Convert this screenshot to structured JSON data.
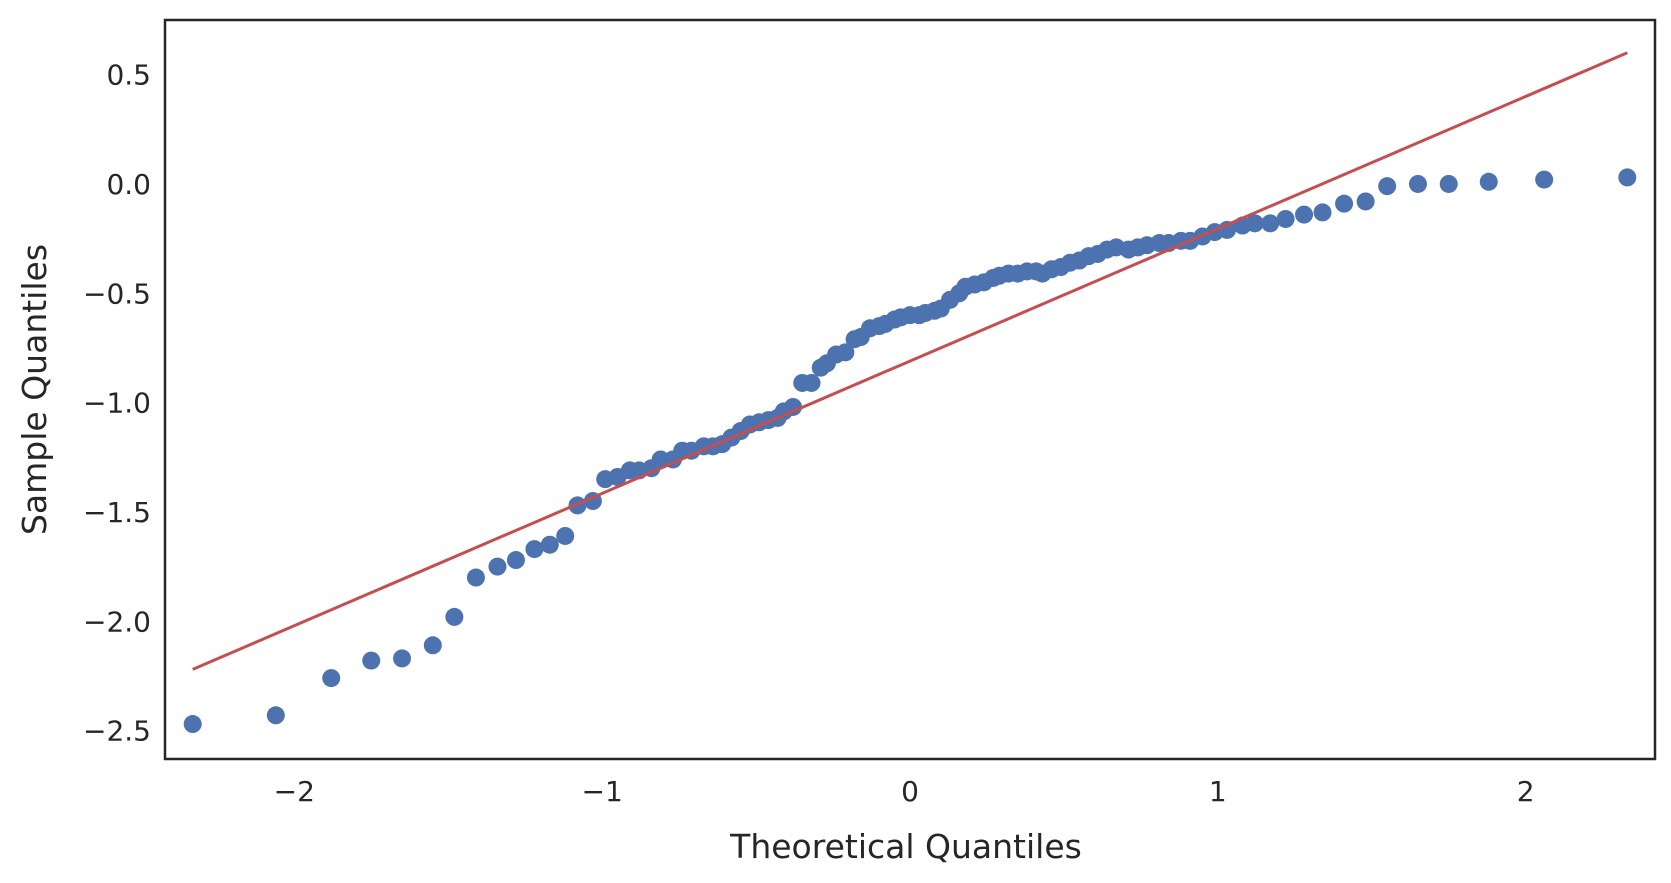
{
  "colors": {
    "points": "#4c72b0",
    "line": "#c44e52",
    "frame": "#262626",
    "text": "#262626"
  },
  "chart_data": {
    "type": "scatter",
    "title": "",
    "xlabel": "Theoretical Quantiles",
    "ylabel": "Sample Quantiles",
    "xlim": [
      -2.42,
      2.42
    ],
    "ylim": [
      -2.63,
      0.75
    ],
    "xticks": [
      {
        "value": -2,
        "label": "−2"
      },
      {
        "value": -1,
        "label": "−1"
      },
      {
        "value": 0,
        "label": "0"
      },
      {
        "value": 1,
        "label": "1"
      },
      {
        "value": 2,
        "label": "2"
      }
    ],
    "yticks": [
      {
        "value": 0.5,
        "label": "0.5"
      },
      {
        "value": 0.0,
        "label": "0.0"
      },
      {
        "value": -0.5,
        "label": "−0.5"
      },
      {
        "value": -1.0,
        "label": "−1.0"
      },
      {
        "value": -1.5,
        "label": "−1.5"
      },
      {
        "value": -2.0,
        "label": "−2.0"
      },
      {
        "value": -2.5,
        "label": "−2.5"
      }
    ],
    "reference_line": {
      "name": "fit",
      "x": [
        -2.33,
        2.33
      ],
      "y": [
        -2.22,
        0.6
      ]
    },
    "series": [
      {
        "name": "sample",
        "x": [
          -2.33,
          -2.06,
          -1.88,
          -1.75,
          -1.65,
          -1.55,
          -1.48,
          -1.41,
          -1.34,
          -1.28,
          -1.22,
          -1.17,
          -1.12,
          -1.08,
          -1.03,
          -0.99,
          -0.95,
          -0.91,
          -0.88,
          -0.84,
          -0.81,
          -0.77,
          -0.74,
          -0.71,
          -0.67,
          -0.64,
          -0.61,
          -0.58,
          -0.55,
          -0.52,
          -0.49,
          -0.46,
          -0.43,
          -0.41,
          -0.38,
          -0.35,
          -0.32,
          -0.29,
          -0.27,
          -0.24,
          -0.21,
          -0.18,
          -0.16,
          -0.13,
          -0.1,
          -0.08,
          -0.05,
          -0.03,
          0.0,
          0.03,
          0.05,
          0.08,
          0.1,
          0.13,
          0.16,
          0.18,
          0.21,
          0.24,
          0.27,
          0.29,
          0.32,
          0.35,
          0.38,
          0.41,
          0.43,
          0.46,
          0.49,
          0.52,
          0.55,
          0.58,
          0.61,
          0.64,
          0.67,
          0.71,
          0.74,
          0.77,
          0.81,
          0.84,
          0.88,
          0.91,
          0.95,
          0.99,
          1.03,
          1.08,
          1.12,
          1.17,
          1.22,
          1.28,
          1.34,
          1.41,
          1.48,
          1.55,
          1.65,
          1.75,
          1.88,
          2.06,
          2.33
        ],
        "y": [
          -2.47,
          -2.43,
          -2.26,
          -2.18,
          -2.17,
          -2.11,
          -1.98,
          -1.8,
          -1.75,
          -1.72,
          -1.67,
          -1.65,
          -1.61,
          -1.47,
          -1.45,
          -1.35,
          -1.34,
          -1.31,
          -1.31,
          -1.3,
          -1.26,
          -1.26,
          -1.22,
          -1.22,
          -1.2,
          -1.2,
          -1.19,
          -1.16,
          -1.13,
          -1.1,
          -1.09,
          -1.08,
          -1.07,
          -1.04,
          -1.02,
          -0.91,
          -0.91,
          -0.84,
          -0.82,
          -0.78,
          -0.77,
          -0.71,
          -0.7,
          -0.66,
          -0.65,
          -0.64,
          -0.62,
          -0.61,
          -0.6,
          -0.6,
          -0.59,
          -0.58,
          -0.57,
          -0.53,
          -0.5,
          -0.47,
          -0.46,
          -0.45,
          -0.43,
          -0.42,
          -0.41,
          -0.41,
          -0.4,
          -0.4,
          -0.41,
          -0.39,
          -0.38,
          -0.36,
          -0.35,
          -0.33,
          -0.32,
          -0.3,
          -0.29,
          -0.3,
          -0.29,
          -0.28,
          -0.27,
          -0.27,
          -0.26,
          -0.26,
          -0.24,
          -0.22,
          -0.21,
          -0.19,
          -0.18,
          -0.18,
          -0.16,
          -0.14,
          -0.13,
          -0.09,
          -0.08,
          -0.01,
          0.0,
          0.0,
          0.01,
          0.02,
          0.03
        ]
      }
    ]
  }
}
